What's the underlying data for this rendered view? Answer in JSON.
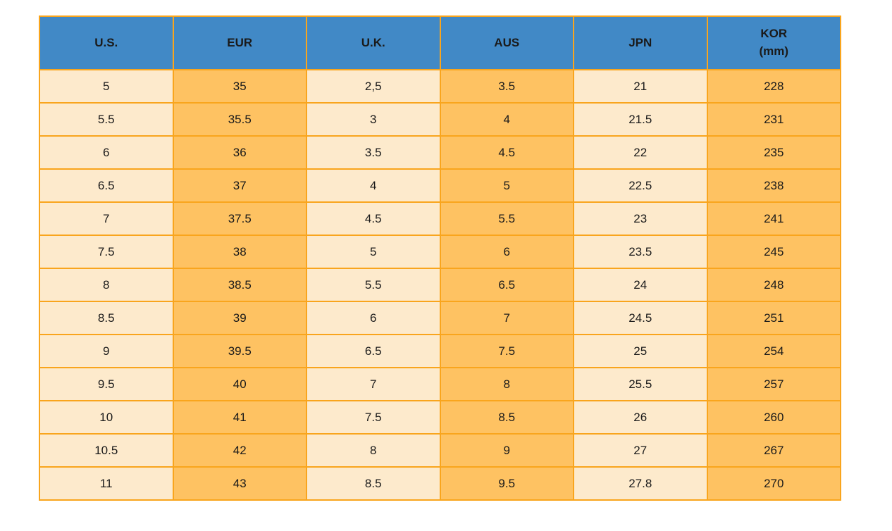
{
  "colors": {
    "header_bg": "#4189C6",
    "header_text": "#1A1A1A",
    "cell_text": "#1A1A1A",
    "light_column_bg": "#FDEACC",
    "orange_column_bg": "#FEC262",
    "grid_border": "#F9A51D",
    "page_bg": "#FFFFFF"
  },
  "table": {
    "columns": [
      {
        "id": "us",
        "label": "U.S."
      },
      {
        "id": "eur",
        "label": "EUR"
      },
      {
        "id": "uk",
        "label": "U.K."
      },
      {
        "id": "aus",
        "label": "AUS"
      },
      {
        "id": "jpn",
        "label": "JPN"
      },
      {
        "id": "kor",
        "label": "KOR",
        "sublabel": "(mm)"
      }
    ],
    "rows": [
      [
        "5",
        "35",
        "2,5",
        "3.5",
        "21",
        "228"
      ],
      [
        "5.5",
        "35.5",
        "3",
        "4",
        "21.5",
        "231"
      ],
      [
        "6",
        "36",
        "3.5",
        "4.5",
        "22",
        "235"
      ],
      [
        "6.5",
        "37",
        "4",
        "5",
        "22.5",
        "238"
      ],
      [
        "7",
        "37.5",
        "4.5",
        "5.5",
        "23",
        "241"
      ],
      [
        "7.5",
        "38",
        "5",
        "6",
        "23.5",
        "245"
      ],
      [
        "8",
        "38.5",
        "5.5",
        "6.5",
        "24",
        "248"
      ],
      [
        "8.5",
        "39",
        "6",
        "7",
        "24.5",
        "251"
      ],
      [
        "9",
        "39.5",
        "6.5",
        "7.5",
        "25",
        "254"
      ],
      [
        "9.5",
        "40",
        "7",
        "8",
        "25.5",
        "257"
      ],
      [
        "10",
        "41",
        "7.5",
        "8.5",
        "26",
        "260"
      ],
      [
        "10.5",
        "42",
        "8",
        "9",
        "27",
        "267"
      ],
      [
        "11",
        "43",
        "8.5",
        "9.5",
        "27.8",
        "270"
      ]
    ]
  }
}
